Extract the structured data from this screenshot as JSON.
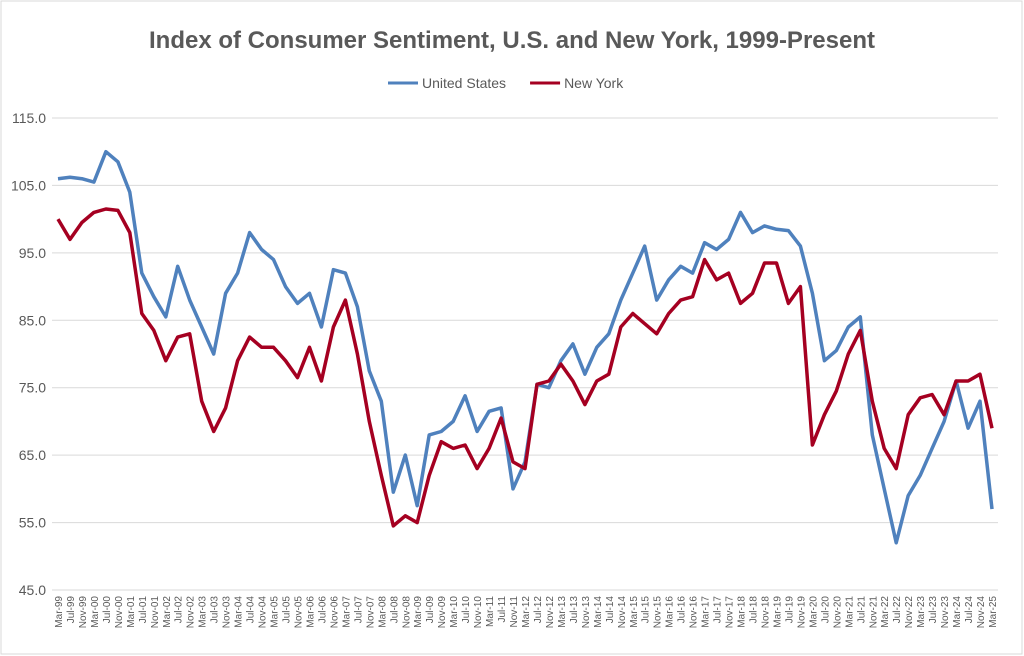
{
  "chart_data": {
    "type": "line",
    "title": "Index of Consumer Sentiment, U.S. and New York, 1999-Present",
    "categories": [
      "Mar-99",
      "Jul-99",
      "Nov-99",
      "Mar-00",
      "Jul-00",
      "Nov-00",
      "Mar-01",
      "Jul-01",
      "Nov-01",
      "Mar-02",
      "Jul-02",
      "Nov-02",
      "Mar-03",
      "Jul-03",
      "Nov-03",
      "Mar-04",
      "Jul-04",
      "Nov-04",
      "Mar-05",
      "Jul-05",
      "Nov-05",
      "Mar-06",
      "Jul-06",
      "Nov-06",
      "Mar-07",
      "Jul-07",
      "Nov-07",
      "Mar-08",
      "Jul-08",
      "Nov-08",
      "Mar-09",
      "Jul-09",
      "Nov-09",
      "Mar-10",
      "Jul-10",
      "Nov-10",
      "Mar-11",
      "Jul-11",
      "Nov-11",
      "Mar-12",
      "Jul-12",
      "Nov-12",
      "Mar-13",
      "Jul-13",
      "Nov-13",
      "Mar-14",
      "Jul-14",
      "Nov-14",
      "Mar-15",
      "Jul-15",
      "Nov-15",
      "Mar-16",
      "Jul-16",
      "Nov-16",
      "Mar-17",
      "Jul-17",
      "Nov-17",
      "Mar-18",
      "Jul-18",
      "Nov-18",
      "Mar-19",
      "Jul-19",
      "Nov-19",
      "Mar-20",
      "Jul-20",
      "Nov-20",
      "Mar-21",
      "Jul-21",
      "Nov-21",
      "Mar-22",
      "Jul-22",
      "Nov-22",
      "Mar-23",
      "Jul-23",
      "Nov-23",
      "Mar-24",
      "Jul-24",
      "Nov-24",
      "Mar-25"
    ],
    "series": [
      {
        "name": "United States",
        "color": "#4f81bd",
        "values": [
          106,
          106.2,
          106,
          105.5,
          110,
          108.5,
          104,
          92,
          88.5,
          85.5,
          93,
          88,
          84,
          80,
          89,
          92,
          98,
          95.5,
          94,
          90,
          87.5,
          89,
          84,
          92.5,
          92,
          87,
          77.5,
          73,
          59.5,
          65,
          57.5,
          68,
          68.5,
          70,
          73.8,
          68.5,
          71.5,
          72,
          60,
          64,
          75.5,
          75,
          79,
          81.5,
          77,
          81,
          83,
          88,
          92,
          96,
          88,
          91,
          93,
          92,
          96.5,
          95.5,
          97,
          101,
          98,
          99,
          98.5,
          98.3,
          96,
          89,
          79,
          80.5,
          84,
          85.5,
          68,
          60,
          52,
          59,
          62,
          66,
          70,
          76,
          69,
          73,
          57
        ]
      },
      {
        "name": "New York",
        "color": "#a50021",
        "values": [
          100,
          97,
          99.5,
          101,
          101.5,
          101.3,
          98,
          86,
          83.5,
          79,
          82.5,
          83,
          73,
          68.5,
          72,
          79,
          82.5,
          81,
          81,
          79,
          76.5,
          81,
          76,
          84,
          88,
          80,
          70,
          62,
          54.5,
          56,
          55,
          62,
          67,
          66,
          66.5,
          63,
          66,
          70.5,
          64,
          63,
          75.5,
          76,
          78.5,
          76,
          72.5,
          76,
          77,
          84,
          86,
          84.5,
          83,
          86,
          88,
          88.5,
          94,
          91,
          92,
          87.5,
          89,
          93.5,
          93.5,
          87.5,
          90,
          66.5,
          71,
          74.5,
          80,
          83.5,
          73,
          66,
          63,
          71,
          73.5,
          74,
          71,
          76,
          76,
          77,
          69
        ]
      }
    ],
    "ylim": [
      45,
      115
    ],
    "yticks": [
      {
        "value": 45,
        "label": "45.0"
      },
      {
        "value": 55,
        "label": "55.0"
      },
      {
        "value": 65,
        "label": "65.0"
      },
      {
        "value": 75,
        "label": "75.0"
      },
      {
        "value": 85,
        "label": "85.0"
      },
      {
        "value": 95,
        "label": "95.0"
      },
      {
        "value": 105,
        "label": "105.0"
      },
      {
        "value": 115,
        "label": "115.0"
      }
    ],
    "grid": true,
    "legend": "top"
  }
}
